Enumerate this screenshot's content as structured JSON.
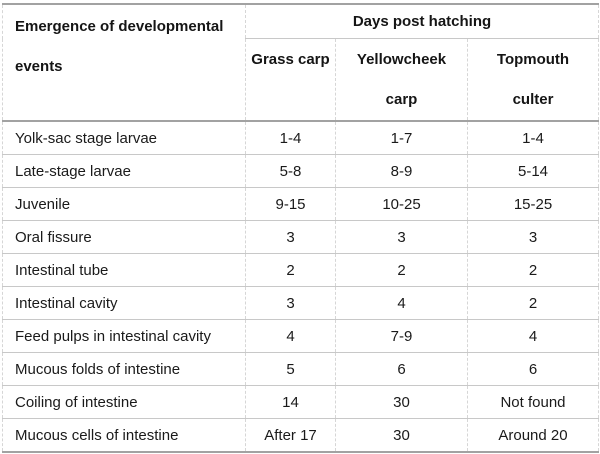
{
  "table": {
    "corner": {
      "line1": "Emergence of developmental",
      "line2": "events"
    },
    "span_header": "Days post hatching",
    "species_columns": [
      {
        "line1": "Grass carp",
        "line2": ""
      },
      {
        "line1": "Yellowcheek",
        "line2": "carp"
      },
      {
        "line1": "Topmouth",
        "line2": "culter"
      }
    ],
    "rows": [
      {
        "label": "Yolk-sac stage larvae",
        "values": [
          "1-4",
          "1-7",
          "1-4"
        ]
      },
      {
        "label": "Late-stage larvae",
        "values": [
          "5-8",
          "8-9",
          "5-14"
        ]
      },
      {
        "label": "Juvenile",
        "values": [
          "9-15",
          "10-25",
          "15-25"
        ]
      },
      {
        "label": "Oral fissure",
        "values": [
          "3",
          "3",
          "3"
        ]
      },
      {
        "label": "Intestinal tube",
        "values": [
          "2",
          "2",
          "2"
        ]
      },
      {
        "label": "Intestinal cavity",
        "values": [
          "3",
          "4",
          "2"
        ]
      },
      {
        "label": "Feed pulps in intestinal cavity",
        "values": [
          "4",
          "7-9",
          "4"
        ]
      },
      {
        "label": "Mucous folds of intestine",
        "values": [
          "5",
          "6",
          "6"
        ]
      },
      {
        "label": "Coiling of intestine",
        "values": [
          "14",
          "30",
          "Not found"
        ]
      },
      {
        "label": "Mucous cells of intestine",
        "values": [
          "After 17",
          "30",
          "Around 20"
        ]
      }
    ],
    "colors": {
      "border_strong": "#a2a2a2",
      "border_row": "#c8c8c8",
      "border_column_dashed": "#d6d6d6",
      "text": "#1a1a1a",
      "background": "#ffffff"
    }
  }
}
